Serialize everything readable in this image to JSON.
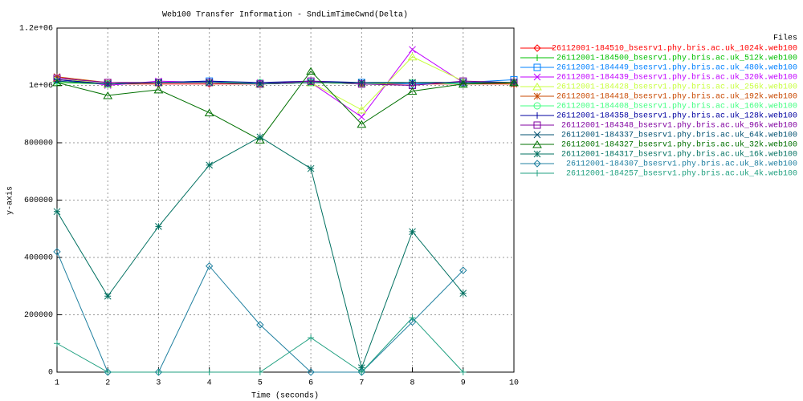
{
  "chart_data": {
    "type": "line",
    "title": "Web100 Transfer Information - SndLimTimeCwnd(Delta)",
    "x_label": "Time (seconds)",
    "y_label": "y-axis",
    "legend_title": "Files",
    "legend": "right",
    "grid": true,
    "x": [
      1,
      2,
      3,
      4,
      5,
      6,
      7,
      8,
      9,
      10
    ],
    "xlim": [
      1,
      10
    ],
    "xticks": [
      1,
      2,
      3,
      4,
      5,
      6,
      7,
      8,
      9,
      10
    ],
    "ylim": [
      0,
      1200000
    ],
    "yticks": [
      0,
      200000,
      400000,
      600000,
      800000,
      {
        "value": 1000000,
        "label": "1e+06"
      },
      {
        "value": 1200000,
        "label": "1.2e+06"
      }
    ],
    "series": [
      {
        "name": "26112001-184510_bsesrv1.phy.bris.ac.uk_1024k.web100",
        "color": "#ff0000",
        "marker": "diamond",
        "values": [
          1020000,
          1005000,
          1005000,
          1005000,
          1005000,
          1010000,
          1005000,
          1005000,
          1005000,
          1005000
        ]
      },
      {
        "name": "26112001-184500_bsesrv1.phy.bris.ac.uk_512k.web100",
        "color": "#00c000",
        "marker": "plus",
        "values": [
          1010000,
          1005000,
          1010000,
          1010000,
          1005000,
          1010000,
          1010000,
          1010000,
          1005000,
          1010000
        ]
      },
      {
        "name": "26112001-184449_bsesrv1.phy.bris.ac.uk_480k.web100",
        "color": "#0080ff",
        "marker": "square",
        "values": [
          1020000,
          1005000,
          1010000,
          1015000,
          1005000,
          1010000,
          1010000,
          1005000,
          1010000,
          1020000
        ]
      },
      {
        "name": "26112001-184439_bsesrv1.phy.bris.ac.uk_320k.web100",
        "color": "#c000ff",
        "marker": "x",
        "values": [
          1030000,
          1000000,
          1015000,
          1010000,
          1010000,
          1010000,
          890000,
          1125000,
          1010000,
          1010000
        ]
      },
      {
        "name": "26112001-184428_bsesrv1.phy.bris.ac.uk_256k.web100",
        "color": "#c8ff40",
        "marker": "triangle",
        "values": [
          1025000,
          1005000,
          1010000,
          1010000,
          1005000,
          1010000,
          915000,
          1100000,
          1015000,
          1010000
        ]
      },
      {
        "name": "26112001-184418_bsesrv1.phy.bris.ac.uk_192k.web100",
        "color": "#c84800",
        "marker": "star",
        "values": [
          1030000,
          1010000,
          1010000,
          1010000,
          1005000,
          1010000,
          1005000,
          1010000,
          1010000,
          1005000
        ]
      },
      {
        "name": "26112001-184408_bsesrv1.phy.bris.ac.uk_160k.web100",
        "color": "#40ff80",
        "marker": "circle",
        "values": [
          1015000,
          1005000,
          1010000,
          1010000,
          1010000,
          1010000,
          1005000,
          1010000,
          1005000,
          1010000
        ]
      },
      {
        "name": "26112001-184358_bsesrv1.phy.bris.ac.uk_128k.web100",
        "color": "#0000a0",
        "marker": "plus",
        "values": [
          1020000,
          1005000,
          1010000,
          1015000,
          1010000,
          1015000,
          1010000,
          1010000,
          1010000,
          1010000
        ]
      },
      {
        "name": "26112001-184348_bsesrv1.phy.bris.ac.uk_96k.web100",
        "color": "#8000a0",
        "marker": "square",
        "values": [
          1025000,
          1010000,
          1010000,
          1010000,
          1005000,
          1015000,
          1005000,
          1000000,
          1015000,
          1010000
        ]
      },
      {
        "name": "26112001-184337_bsesrv1.phy.bris.ac.uk_64k.web100",
        "color": "#005070",
        "marker": "x",
        "values": [
          1015000,
          1005000,
          1010000,
          1010000,
          1005000,
          1010000,
          1010000,
          1010000,
          1010000,
          1010000
        ]
      },
      {
        "name": "26112001-184327_bsesrv1.phy.bris.ac.uk_32k.web100",
        "color": "#007000",
        "marker": "triangle",
        "values": [
          1010000,
          965000,
          985000,
          905000,
          810000,
          1050000,
          865000,
          980000,
          1005000,
          1010000
        ]
      },
      {
        "name": "26112001-184317_bsesrv1.phy.bris.ac.uk_16k.web100",
        "color": "#007060",
        "marker": "star",
        "values": [
          560000,
          265000,
          508000,
          722000,
          820000,
          710000,
          15000,
          490000,
          275000,
          null
        ]
      },
      {
        "name": "26112001-184307_bsesrv1.phy.bris.ac.uk_8k.web100",
        "color": "#2080a0",
        "marker": "diamond",
        "values": [
          420000,
          0,
          0,
          370000,
          165000,
          0,
          0,
          175000,
          355000,
          null
        ]
      },
      {
        "name": "26112001-184257_bsesrv1.phy.bris.ac.uk_4k.web100",
        "color": "#20a080",
        "marker": "plus",
        "values": [
          100000,
          0,
          0,
          0,
          0,
          120000,
          0,
          190000,
          0,
          null
        ]
      }
    ]
  }
}
